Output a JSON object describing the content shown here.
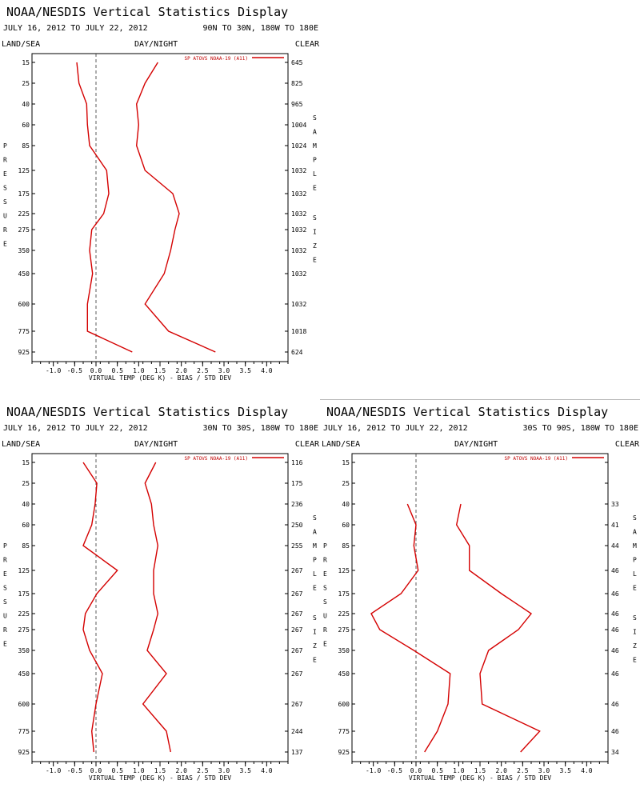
{
  "colors": {
    "series": "#d40000",
    "zero_line": "#333333",
    "frame": "#000000"
  },
  "common": {
    "title": "NOAA/NESDIS Vertical Statistics Display",
    "date_range": "JULY 16, 2012 TO JULY 22, 2012",
    "land_sea_label": "LAND/SEA",
    "day_night_label": "DAY/NIGHT",
    "clear_label": "CLEAR",
    "pressure_letters": [
      "P",
      "R",
      "E",
      "S",
      "S",
      "U",
      "R",
      "E"
    ],
    "sample_letters": [
      "S",
      "A",
      "M",
      "P",
      "L",
      "E"
    ],
    "size_letters": [
      "S",
      "I",
      "Z",
      "E"
    ],
    "x_axis_label": "VIRTUAL TEMP (DEG K) - BIAS / STD DEV",
    "legend_label": "SP ATOVS NOAA-19 (A11)"
  },
  "chart_data": [
    {
      "type": "line",
      "region": "90N TO 30N, 180W TO 180E",
      "pressure_levels": [
        15,
        25,
        40,
        60,
        85,
        125,
        175,
        225,
        275,
        350,
        450,
        600,
        775,
        925
      ],
      "xlim": [
        -1.5,
        4.5
      ],
      "x_ticks": [
        "-1.0",
        "-0.5",
        "0.0",
        "0.5",
        "1.0",
        "1.5",
        "2.0",
        "2.5",
        "3.0",
        "3.5",
        "4.0"
      ],
      "sample_size": [
        "645",
        "825",
        "965",
        "1004",
        "1024",
        "1032",
        "1032",
        "1032",
        "1032",
        "1032",
        "1032",
        "1032",
        "1018",
        "624"
      ],
      "series": [
        {
          "name": "SP ATOVS NOAA-19 (A11)",
          "stat": "bias",
          "values": [
            -0.45,
            -0.4,
            -0.22,
            -0.2,
            -0.15,
            0.25,
            0.3,
            0.18,
            -0.1,
            -0.15,
            -0.08,
            -0.2,
            -0.2,
            0.85
          ]
        },
        {
          "stat": "std_dev",
          "values": [
            1.45,
            1.15,
            0.95,
            1.0,
            0.95,
            1.15,
            1.8,
            1.95,
            1.85,
            1.75,
            1.6,
            1.15,
            1.7,
            2.8
          ]
        }
      ]
    },
    {
      "type": "line",
      "region": "30N TO 30S, 180W TO 180E",
      "pressure_levels": [
        15,
        25,
        40,
        60,
        85,
        125,
        175,
        225,
        275,
        350,
        450,
        600,
        775,
        925
      ],
      "xlim": [
        -1.5,
        4.5
      ],
      "x_ticks": [
        "-1.0",
        "-0.5",
        "0.0",
        "0.5",
        "1.0",
        "1.5",
        "2.0",
        "2.5",
        "3.0",
        "3.5",
        "4.0"
      ],
      "sample_size": [
        "116",
        "175",
        "236",
        "250",
        "255",
        "267",
        "267",
        "267",
        "267",
        "267",
        "267",
        "267",
        "244",
        "137"
      ],
      "series": [
        {
          "name": "SP ATOVS NOAA-19 (A11)",
          "stat": "bias",
          "values": [
            -0.3,
            0.02,
            -0.02,
            -0.1,
            -0.3,
            0.5,
            0.02,
            -0.25,
            -0.3,
            -0.15,
            0.15,
            0.0,
            -0.1,
            -0.05
          ]
        },
        {
          "stat": "std_dev",
          "values": [
            1.4,
            1.15,
            1.3,
            1.35,
            1.45,
            1.35,
            1.35,
            1.45,
            1.35,
            1.2,
            1.65,
            1.1,
            1.65,
            1.75
          ]
        }
      ]
    },
    {
      "type": "line",
      "region": "30S TO 90S, 180W TO 180E",
      "pressure_levels": [
        15,
        25,
        40,
        60,
        85,
        125,
        175,
        225,
        275,
        350,
        450,
        600,
        775,
        925
      ],
      "xlim": [
        -1.5,
        4.5
      ],
      "x_ticks": [
        "-1.0",
        "-0.5",
        "0.0",
        "0.5",
        "1.0",
        "1.5",
        "2.0",
        "2.5",
        "3.0",
        "3.5",
        "4.0"
      ],
      "sample_size": [
        "",
        "",
        "33",
        "41",
        "44",
        "46",
        "46",
        "46",
        "46",
        "46",
        "46",
        "46",
        "46",
        "34"
      ],
      "series": [
        {
          "name": "SP ATOVS NOAA-19 (A11)",
          "stat": "bias",
          "values": [
            null,
            null,
            -0.2,
            0.0,
            -0.05,
            0.05,
            -0.35,
            -1.05,
            -0.85,
            -0.05,
            0.8,
            0.75,
            0.5,
            0.2
          ]
        },
        {
          "stat": "std_dev",
          "values": [
            null,
            null,
            1.05,
            0.95,
            1.25,
            1.25,
            2.0,
            2.7,
            2.4,
            1.7,
            1.5,
            1.55,
            2.9,
            2.45
          ]
        }
      ]
    }
  ]
}
